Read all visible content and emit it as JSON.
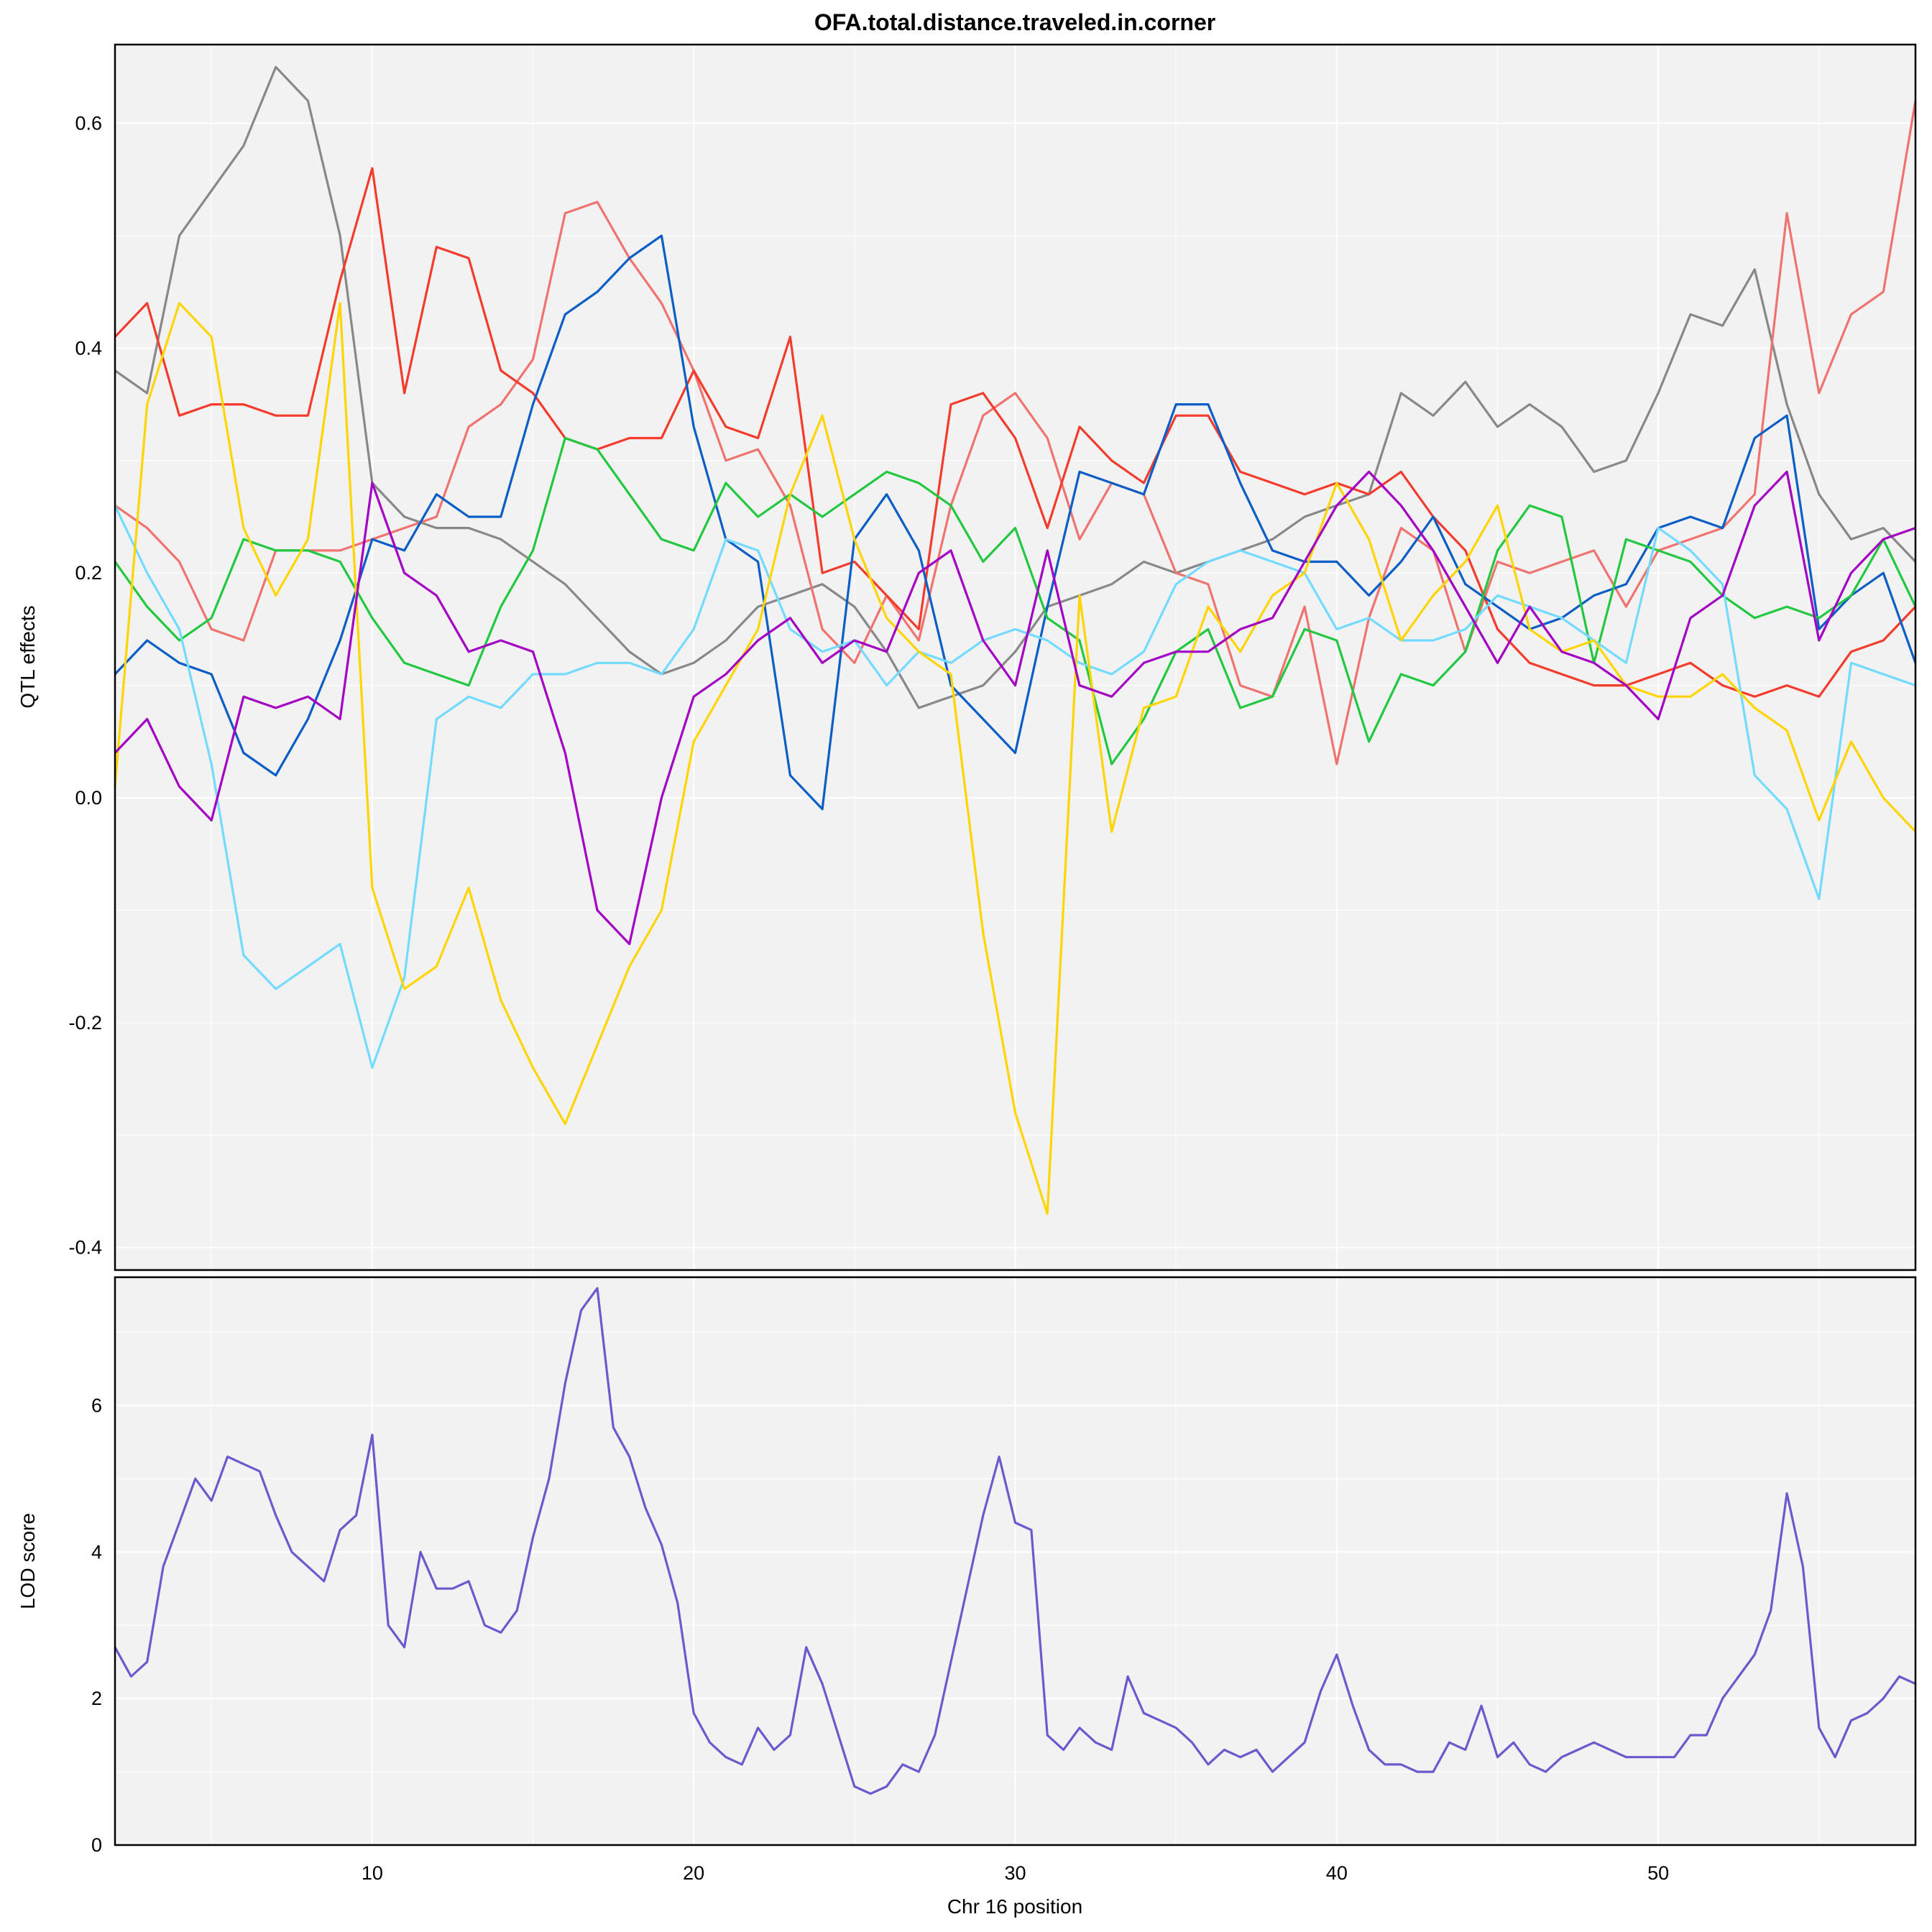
{
  "chart_data": [
    {
      "type": "line",
      "panel": "effects",
      "title": "OFA.total.distance.traveled.in.corner",
      "ylabel": "QTL effects",
      "xlim": [
        2,
        58
      ],
      "ylim": [
        -0.42,
        0.67
      ],
      "yticks": [
        -0.4,
        -0.2,
        0.0,
        0.2,
        0.4,
        0.6
      ],
      "ytick_labels": [
        "-0.4",
        "-0.2",
        "0.0",
        "0.2",
        "0.4",
        "0.6"
      ],
      "grid": true,
      "x": [
        2,
        3,
        4,
        5,
        6,
        7,
        8,
        9,
        10,
        11,
        12,
        13,
        14,
        15,
        16,
        17,
        18,
        19,
        20,
        21,
        22,
        23,
        24,
        25,
        26,
        27,
        28,
        29,
        30,
        31,
        32,
        33,
        34,
        35,
        36,
        37,
        38,
        39,
        40,
        41,
        42,
        43,
        44,
        45,
        46,
        47,
        48,
        49,
        50,
        51,
        52,
        53,
        54,
        55,
        56,
        57,
        58
      ],
      "series": [
        {
          "color": "#888888",
          "values": [
            0.38,
            0.36,
            0.5,
            0.54,
            0.58,
            0.65,
            0.62,
            0.5,
            0.28,
            0.25,
            0.24,
            0.24,
            0.23,
            0.21,
            0.19,
            0.16,
            0.13,
            0.11,
            0.12,
            0.14,
            0.17,
            0.18,
            0.19,
            0.17,
            0.13,
            0.08,
            0.09,
            0.1,
            0.13,
            0.17,
            0.18,
            0.19,
            0.21,
            0.2,
            0.21,
            0.22,
            0.23,
            0.25,
            0.26,
            0.27,
            0.36,
            0.34,
            0.37,
            0.33,
            0.35,
            0.33,
            0.29,
            0.3,
            0.36,
            0.43,
            0.42,
            0.47,
            0.35,
            0.27,
            0.23,
            0.24,
            0.21
          ]
        },
        {
          "color": "#f0736f",
          "values": [
            0.26,
            0.24,
            0.21,
            0.15,
            0.14,
            0.22,
            0.22,
            0.22,
            0.23,
            0.24,
            0.25,
            0.33,
            0.35,
            0.39,
            0.52,
            0.53,
            0.48,
            0.44,
            0.38,
            0.3,
            0.31,
            0.26,
            0.15,
            0.12,
            0.18,
            0.14,
            0.26,
            0.34,
            0.36,
            0.32,
            0.23,
            0.28,
            0.27,
            0.2,
            0.19,
            0.1,
            0.09,
            0.17,
            0.03,
            0.16,
            0.24,
            0.22,
            0.13,
            0.21,
            0.2,
            0.21,
            0.22,
            0.17,
            0.22,
            0.23,
            0.24,
            0.27,
            0.52,
            0.36,
            0.43,
            0.45,
            0.62
          ]
        },
        {
          "color": "#f43b2c",
          "values": [
            0.41,
            0.44,
            0.34,
            0.35,
            0.35,
            0.34,
            0.34,
            0.46,
            0.56,
            0.36,
            0.49,
            0.48,
            0.38,
            0.36,
            0.32,
            0.31,
            0.32,
            0.32,
            0.38,
            0.33,
            0.32,
            0.41,
            0.2,
            0.21,
            0.18,
            0.15,
            0.35,
            0.36,
            0.32,
            0.24,
            0.33,
            0.3,
            0.28,
            0.34,
            0.34,
            0.29,
            0.28,
            0.27,
            0.28,
            0.27,
            0.29,
            0.25,
            0.22,
            0.15,
            0.12,
            0.11,
            0.1,
            0.1,
            0.11,
            0.12,
            0.1,
            0.09,
            0.1,
            0.09,
            0.13,
            0.14,
            0.17
          ]
        },
        {
          "color": "#0b5ec6",
          "values": [
            0.11,
            0.14,
            0.12,
            0.11,
            0.04,
            0.02,
            0.07,
            0.14,
            0.23,
            0.22,
            0.27,
            0.25,
            0.25,
            0.35,
            0.43,
            0.45,
            0.48,
            0.5,
            0.33,
            0.23,
            0.21,
            0.02,
            -0.01,
            0.23,
            0.27,
            0.22,
            0.1,
            0.07,
            0.04,
            0.17,
            0.29,
            0.28,
            0.27,
            0.35,
            0.35,
            0.28,
            0.22,
            0.21,
            0.21,
            0.18,
            0.21,
            0.25,
            0.19,
            0.17,
            0.15,
            0.16,
            0.18,
            0.19,
            0.24,
            0.25,
            0.24,
            0.32,
            0.34,
            0.15,
            0.18,
            0.2,
            0.12
          ]
        },
        {
          "color": "#22c840",
          "values": [
            0.21,
            0.17,
            0.14,
            0.16,
            0.23,
            0.22,
            0.22,
            0.21,
            0.16,
            0.12,
            0.11,
            0.1,
            0.17,
            0.22,
            0.32,
            0.31,
            0.27,
            0.23,
            0.22,
            0.28,
            0.25,
            0.27,
            0.25,
            0.27,
            0.29,
            0.28,
            0.26,
            0.21,
            0.24,
            0.16,
            0.14,
            0.03,
            0.07,
            0.13,
            0.15,
            0.08,
            0.09,
            0.15,
            0.14,
            0.05,
            0.11,
            0.1,
            0.13,
            0.22,
            0.26,
            0.25,
            0.12,
            0.23,
            0.22,
            0.21,
            0.18,
            0.16,
            0.17,
            0.16,
            0.18,
            0.23,
            0.17
          ]
        },
        {
          "color": "#72dbff",
          "values": [
            0.26,
            0.2,
            0.15,
            0.03,
            -0.14,
            -0.17,
            -0.15,
            -0.13,
            -0.24,
            -0.16,
            0.07,
            0.09,
            0.08,
            0.11,
            0.11,
            0.12,
            0.12,
            0.11,
            0.15,
            0.23,
            0.22,
            0.15,
            0.13,
            0.14,
            0.1,
            0.13,
            0.12,
            0.14,
            0.15,
            0.14,
            0.12,
            0.11,
            0.13,
            0.19,
            0.21,
            0.22,
            0.21,
            0.2,
            0.15,
            0.16,
            0.14,
            0.14,
            0.15,
            0.18,
            0.17,
            0.16,
            0.14,
            0.12,
            0.24,
            0.22,
            0.19,
            0.02,
            -0.01,
            -0.09,
            0.12,
            0.11,
            0.1
          ]
        },
        {
          "color": "#ffd500",
          "values": [
            0.01,
            0.35,
            0.44,
            0.41,
            0.24,
            0.18,
            0.23,
            0.44,
            -0.08,
            -0.17,
            -0.15,
            -0.08,
            -0.18,
            -0.24,
            -0.29,
            -0.22,
            -0.15,
            -0.1,
            0.05,
            0.1,
            0.15,
            0.27,
            0.34,
            0.23,
            0.16,
            0.13,
            0.11,
            -0.12,
            -0.28,
            -0.37,
            0.18,
            -0.03,
            0.08,
            0.09,
            0.17,
            0.13,
            0.18,
            0.2,
            0.28,
            0.23,
            0.14,
            0.18,
            0.21,
            0.26,
            0.15,
            0.13,
            0.14,
            0.1,
            0.09,
            0.09,
            0.11,
            0.08,
            0.06,
            -0.02,
            0.05,
            0.0,
            -0.03
          ]
        },
        {
          "color": "#a400c4",
          "values": [
            0.04,
            0.07,
            0.01,
            -0.02,
            0.09,
            0.08,
            0.09,
            0.07,
            0.28,
            0.2,
            0.18,
            0.13,
            0.14,
            0.13,
            0.04,
            -0.1,
            -0.13,
            0.0,
            0.09,
            0.11,
            0.14,
            0.16,
            0.12,
            0.14,
            0.13,
            0.2,
            0.22,
            0.14,
            0.1,
            0.22,
            0.1,
            0.09,
            0.12,
            0.13,
            0.13,
            0.15,
            0.16,
            0.21,
            0.26,
            0.29,
            0.26,
            0.22,
            0.17,
            0.12,
            0.17,
            0.13,
            0.12,
            0.1,
            0.07,
            0.16,
            0.18,
            0.26,
            0.29,
            0.14,
            0.2,
            0.23,
            0.24
          ]
        }
      ]
    },
    {
      "type": "line",
      "panel": "lod",
      "ylabel": "LOD score",
      "xlabel": "Chr 16 position",
      "xlim": [
        2,
        58
      ],
      "ylim": [
        0,
        7.75
      ],
      "yticks": [
        0,
        2,
        4,
        6
      ],
      "ytick_labels": [
        "0",
        "2",
        "4",
        "6"
      ],
      "xticks": [
        10,
        20,
        30,
        40,
        50
      ],
      "xtick_labels": [
        "10",
        "20",
        "30",
        "40",
        "50"
      ],
      "grid": true,
      "x": [
        2,
        2.5,
        3,
        3.5,
        4,
        4.5,
        5,
        5.5,
        6,
        6.5,
        7,
        7.5,
        8,
        8.5,
        9,
        9.5,
        10,
        10.5,
        11,
        11.5,
        12,
        12.5,
        13,
        13.5,
        14,
        14.5,
        15,
        15.5,
        16,
        16.5,
        17,
        17.5,
        18,
        18.5,
        19,
        19.5,
        20,
        20.5,
        21,
        21.5,
        22,
        22.5,
        23,
        23.5,
        24,
        24.5,
        25,
        25.5,
        26,
        26.5,
        27,
        27.5,
        28,
        28.5,
        29,
        29.5,
        30,
        30.5,
        31,
        31.5,
        32,
        32.5,
        33,
        33.5,
        34,
        34.5,
        35,
        35.5,
        36,
        36.5,
        37,
        37.5,
        38,
        38.5,
        39,
        39.5,
        40,
        40.5,
        41,
        41.5,
        42,
        42.5,
        43,
        43.5,
        44,
        44.5,
        45,
        45.5,
        46,
        46.5,
        47,
        47.5,
        48,
        48.5,
        49,
        49.5,
        50,
        50.5,
        51,
        51.5,
        52,
        52.5,
        53,
        53.5,
        54,
        54.5,
        55,
        55.5,
        56,
        56.5,
        57,
        57.5,
        58
      ],
      "series": [
        {
          "color": "#6b5acd",
          "values": [
            2.7,
            2.3,
            2.5,
            3.8,
            4.4,
            5.0,
            4.7,
            5.3,
            5.2,
            5.1,
            4.5,
            4.0,
            3.8,
            3.6,
            4.3,
            4.5,
            5.6,
            3.0,
            2.7,
            4.0,
            3.5,
            3.5,
            3.6,
            3.0,
            2.9,
            3.2,
            4.2,
            5.0,
            6.3,
            7.3,
            7.6,
            5.7,
            5.3,
            4.6,
            4.1,
            3.3,
            1.8,
            1.4,
            1.2,
            1.1,
            1.6,
            1.3,
            1.5,
            2.7,
            2.2,
            1.5,
            0.8,
            0.7,
            0.8,
            1.1,
            1.0,
            1.5,
            2.5,
            3.5,
            4.5,
            5.3,
            4.4,
            4.3,
            1.5,
            1.3,
            1.6,
            1.4,
            1.3,
            2.3,
            1.8,
            1.7,
            1.6,
            1.4,
            1.1,
            1.3,
            1.2,
            1.3,
            1.0,
            1.2,
            1.4,
            2.1,
            2.6,
            1.9,
            1.3,
            1.1,
            1.1,
            1.0,
            1.0,
            1.4,
            1.3,
            1.9,
            1.2,
            1.4,
            1.1,
            1.0,
            1.2,
            1.3,
            1.4,
            1.3,
            1.2,
            1.2,
            1.2,
            1.2,
            1.5,
            1.5,
            2.0,
            2.3,
            2.6,
            3.2,
            4.8,
            3.8,
            1.6,
            1.2,
            1.7,
            1.8,
            2.0,
            2.3,
            2.2
          ]
        }
      ]
    }
  ]
}
